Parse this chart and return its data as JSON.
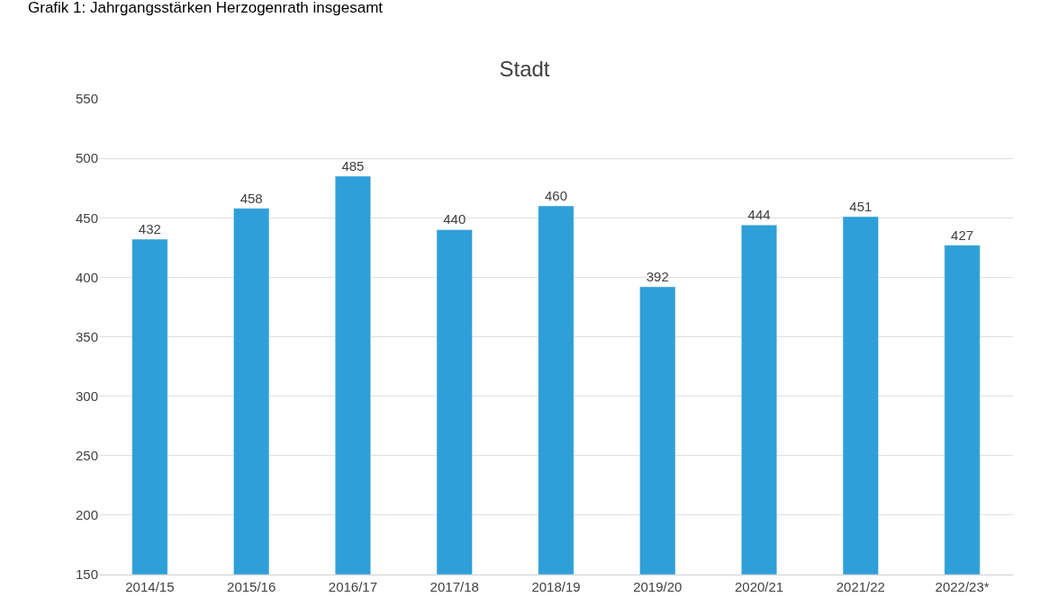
{
  "chart_data": {
    "type": "bar",
    "title": "Stadt",
    "annotations": [
      "Grafik 1: Jahrgangsstärken Herzogenrath insgesamt"
    ],
    "categories": [
      "2014/15",
      "2015/16",
      "2016/17",
      "2017/18",
      "2018/19",
      "2019/20",
      "2020/21",
      "2021/22",
      "2022/23*"
    ],
    "values": [
      432,
      458,
      485,
      440,
      460,
      392,
      444,
      451,
      427
    ],
    "color": "#2e9fd8",
    "ylim": [
      150,
      550
    ],
    "yticks": [
      150,
      200,
      250,
      300,
      350,
      400,
      450,
      500,
      550
    ],
    "grid": "y",
    "data_labels": true
  }
}
